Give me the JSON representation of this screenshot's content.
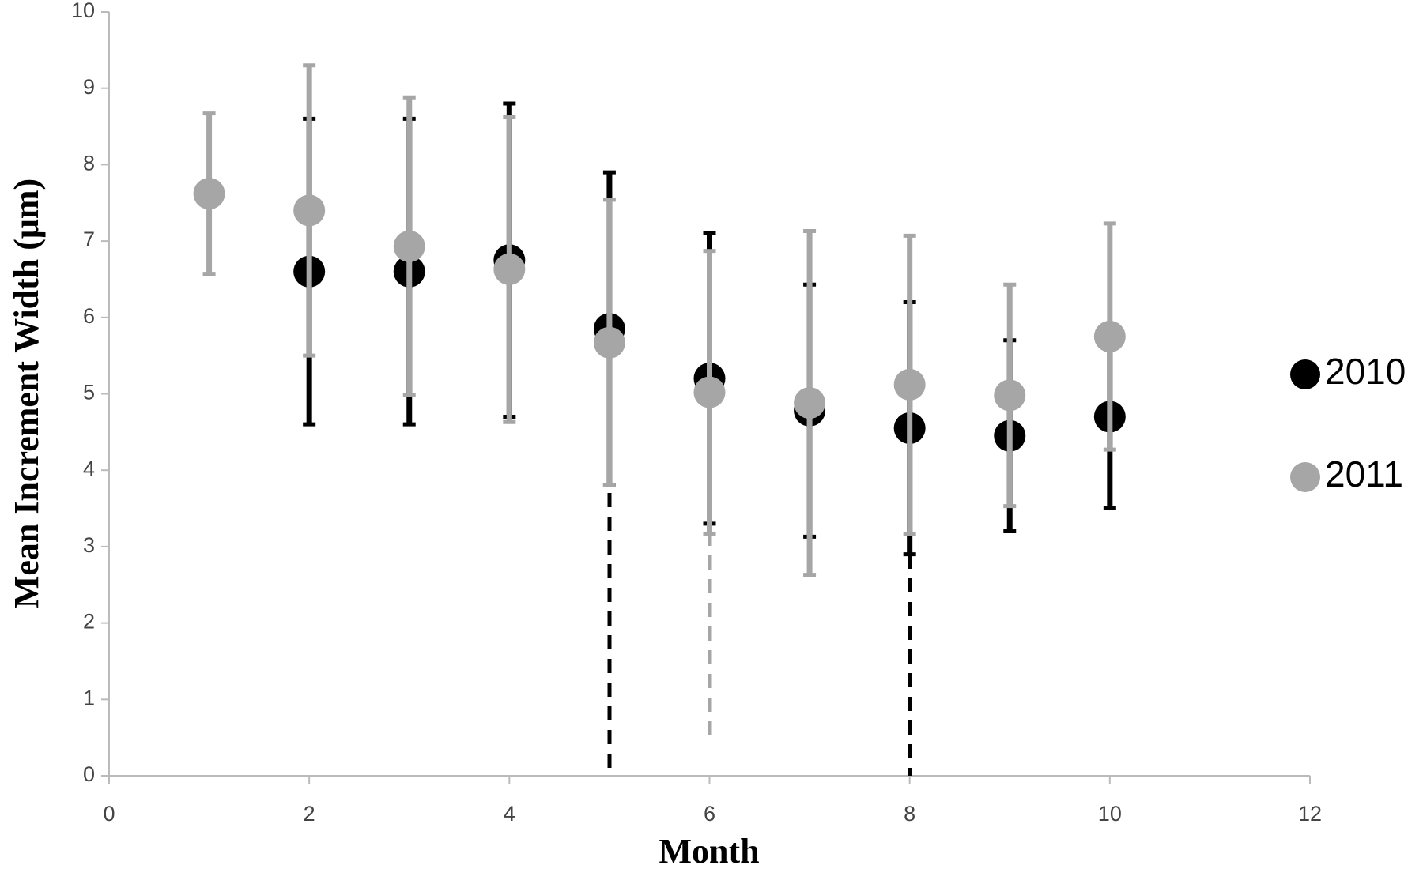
{
  "chart_data": {
    "type": "scatter",
    "ylabel": "Mean Increment Width (μm)",
    "xlabel": "Month",
    "xlim": [
      0,
      12
    ],
    "xticks": [
      0,
      2,
      4,
      6,
      8,
      10,
      12
    ],
    "ylim": [
      0,
      10
    ],
    "yticks": [
      0,
      1,
      2,
      3,
      4,
      5,
      6,
      7,
      8,
      9,
      10
    ],
    "legend": "right",
    "series": [
      {
        "name": "2010",
        "color": "#000000",
        "x": [
          2,
          3,
          4,
          5,
          6,
          7,
          8,
          9,
          10
        ],
        "values": [
          6.6,
          6.6,
          6.75,
          5.85,
          5.2,
          4.78,
          4.55,
          4.45,
          4.7
        ],
        "errors": [
          2.0,
          2.0,
          2.05,
          2.05,
          1.9,
          1.65,
          1.65,
          1.25,
          1.2
        ]
      },
      {
        "name": "2011",
        "color": "#a6a6a6",
        "x": [
          1,
          2,
          3,
          4,
          5,
          6,
          7,
          8,
          9,
          10
        ],
        "values": [
          7.62,
          7.4,
          6.93,
          6.63,
          5.67,
          5.02,
          4.88,
          5.12,
          4.98,
          5.75
        ],
        "errors": [
          1.05,
          1.9,
          1.95,
          2.0,
          1.87,
          1.85,
          2.25,
          1.95,
          1.45,
          1.48
        ]
      }
    ]
  }
}
